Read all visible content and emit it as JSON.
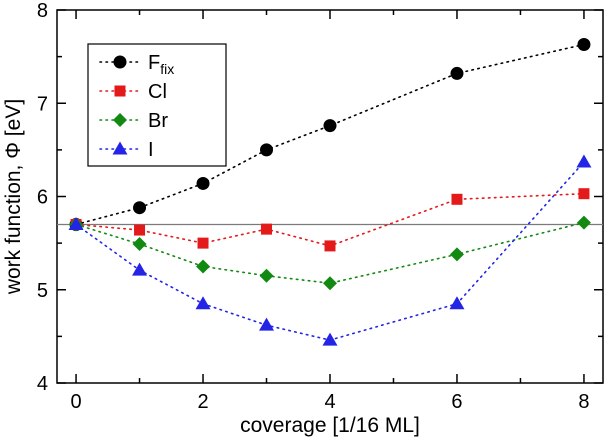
{
  "chart_data": {
    "type": "line",
    "title": "",
    "xlabel": "coverage [1/16 ML]",
    "ylabel": "work function, Φ [eV]",
    "xlim": [
      -0.3,
      8.3
    ],
    "ylim": [
      4,
      8
    ],
    "x_major": [
      0,
      2,
      4,
      6,
      8
    ],
    "x_major_labels": [
      "0",
      "2",
      "4",
      "6",
      "8"
    ],
    "x_minor": [
      1,
      3,
      5,
      7
    ],
    "y_major": [
      4,
      5,
      6,
      7,
      8
    ],
    "y_major_labels": [
      "4",
      "5",
      "6",
      "7",
      "8"
    ],
    "y_minor": [
      4.5,
      5.5,
      6.5,
      7.5
    ],
    "grid": false,
    "legend_position": "top-left-inside",
    "reference_line": {
      "y": 5.7,
      "color": "#7a7a7a"
    },
    "x": [
      0,
      1,
      2,
      3,
      4,
      6,
      8
    ],
    "series": [
      {
        "name": "F_fix",
        "label": "F",
        "label_sub": "fix",
        "color": "#000000",
        "marker": "circle",
        "values": [
          5.7,
          5.88,
          6.14,
          6.5,
          6.76,
          7.32,
          7.63
        ]
      },
      {
        "name": "Cl",
        "label": "Cl",
        "label_sub": "",
        "color": "#e41a1a",
        "marker": "square",
        "values": [
          5.7,
          5.64,
          5.5,
          5.65,
          5.47,
          5.97,
          6.03
        ]
      },
      {
        "name": "Br",
        "label": "Br",
        "label_sub": "",
        "color": "#128a12",
        "marker": "diamond",
        "values": [
          5.7,
          5.49,
          5.25,
          5.15,
          5.07,
          5.38,
          5.72
        ]
      },
      {
        "name": "I",
        "label": "I",
        "label_sub": "",
        "color": "#2424e6",
        "marker": "triangle",
        "values": [
          5.7,
          5.21,
          4.85,
          4.62,
          4.46,
          4.85,
          6.37
        ]
      }
    ]
  }
}
